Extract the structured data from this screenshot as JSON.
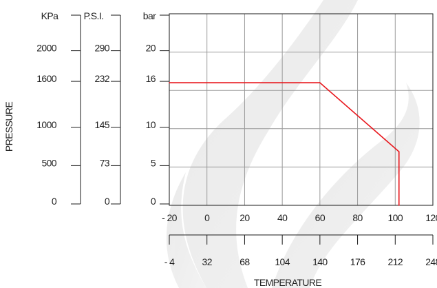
{
  "chart_data": {
    "type": "line",
    "xlabel": "TEMPERATURE",
    "ylabel": "PRESSURE",
    "x_unit_primary": "",
    "x_unit_secondary": "",
    "xlim": [
      -20,
      120
    ],
    "ylim": [
      0,
      25
    ],
    "grid": true,
    "x_ticks_c": [
      "- 20",
      "0",
      "20",
      "40",
      "60",
      "80",
      "100",
      "120"
    ],
    "x_ticks_f": [
      "- 4",
      "32",
      "68",
      "104",
      "140",
      "176",
      "212",
      "248"
    ],
    "y_axes": [
      {
        "unit": "KPa",
        "ticks": [
          "0",
          "500",
          "1000",
          "1600",
          "2000"
        ],
        "values": [
          0,
          5,
          10,
          16,
          20
        ]
      },
      {
        "unit": "P.S.I.",
        "ticks": [
          "0",
          "73",
          "145",
          "232",
          "290"
        ],
        "values": [
          0,
          5,
          10,
          16,
          20
        ]
      },
      {
        "unit": "bar",
        "ticks": [
          "0",
          "5",
          "10",
          "16",
          "20"
        ],
        "values": [
          0,
          5,
          10,
          16,
          20
        ]
      }
    ],
    "series": [
      {
        "color": "#e8161c",
        "x": [
          -20,
          60,
          102,
          102
        ],
        "y": [
          16,
          16,
          7,
          0
        ]
      }
    ]
  }
}
